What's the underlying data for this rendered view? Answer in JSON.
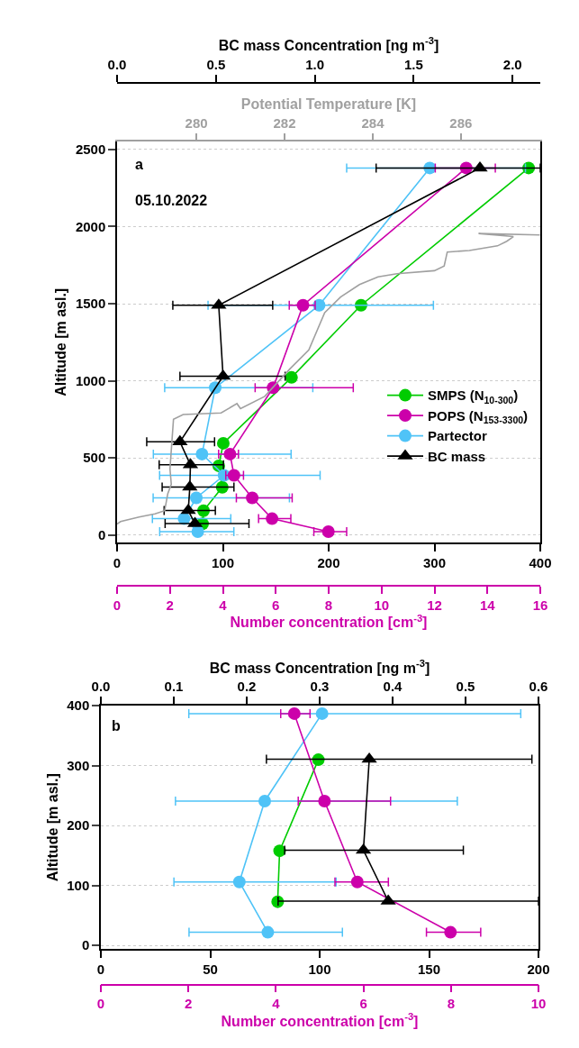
{
  "chart_data": [
    {
      "type": "line",
      "ylabel": "Altitude [m asl.]",
      "xlabel": "Number concentration [cm$^{-3}$]",
      "annotations": [
        "a",
        "05.10.2022"
      ],
      "xlim": [
        0,
        400
      ],
      "xticks": [
        0,
        100,
        200,
        300,
        400
      ],
      "x2lim": [
        0,
        16
      ],
      "x2ticks": [
        0,
        2,
        4,
        6,
        8,
        10,
        12,
        14,
        16
      ],
      "ylim": [
        -50,
        2550
      ],
      "yticks": [
        0,
        500,
        1000,
        1500,
        2000,
        2500
      ],
      "grid": "y",
      "legend": "right",
      "series": [
        {
          "name": "SMPS (N$_{10-300}$)",
          "color": "#00cc00",
          "marker": "circle",
          "x": [
            80.8,
            81.7,
            99.4,
            96.1,
            100.4,
            164.9,
            230.6,
            389
          ],
          "values": [
            73,
            158,
            310,
            449,
            595,
            1022,
            1490,
            2380
          ]
        },
        {
          "name": "POPS (N$_{153-3300}$)",
          "color": "#cc00aa",
          "marker": "circle",
          "axis": "x2",
          "x": [
            7.99,
            5.86,
            5.11,
            4.42,
            4.27,
            5.9,
            7.03,
            13.2
          ],
          "values": [
            22,
            106,
            241,
            387,
            525,
            955,
            1490,
            2380
          ],
          "xerrors": [
            [
              7.44,
              8.68
            ],
            [
              5.35,
              6.57
            ],
            [
              4.51,
              6.62
            ],
            [
              4.11,
              4.78
            ],
            [
              3.84,
              4.59
            ],
            [
              5.22,
              8.93
            ],
            [
              6.51,
              7.49
            ],
            [
              12.03,
              14.3
            ]
          ]
        },
        {
          "name": "Partector",
          "color": "#4fc3f7",
          "marker": "circle",
          "x": [
            76.3,
            63.3,
            74.9,
            101.1,
            80.3,
            92.8,
            191,
            295.6
          ],
          "values": [
            22,
            106,
            241,
            387,
            525,
            955,
            1490,
            2380
          ],
          "xerrors": [
            [
              40.3,
              110.4
            ],
            [
              33.4,
              107.5
            ],
            [
              34.1,
              162.9
            ],
            [
              40.2,
              191.9
            ],
            [
              34.3,
              164.5
            ],
            [
              45,
              185
            ],
            [
              86,
              299
            ],
            [
              217,
              386
            ]
          ]
        }
      ]
    },
    {
      "type": "line",
      "xlabel": "BC mass Concentration [ng m$^{-3}$]",
      "x2label": "Potential Temperature [K]",
      "xlim": [
        0,
        2.14
      ],
      "xticks": [
        {
          "value": 0,
          "label": "0.0"
        },
        0.5,
        {
          "value": 1,
          "label": "1.0"
        },
        1.5,
        {
          "value": 2,
          "label": "2.0"
        }
      ],
      "x2lim": [
        278.2,
        287.8
      ],
      "x2ticks": [
        280,
        282,
        284,
        286
      ],
      "ylim": [
        -50,
        2550
      ],
      "tick_labels": "x",
      "series": [
        {
          "name": "BC mass",
          "color": "#000000",
          "marker": "triangle",
          "x": [
            0.394,
            0.36,
            0.368,
            0.371,
            0.318,
            0.536,
            0.514,
            1.835
          ],
          "values": [
            74,
            159,
            311,
            455,
            604,
            1030,
            1490,
            2380
          ],
          "xerrors": [
            [
              0.243,
              0.667
            ],
            [
              0.238,
              0.497
            ],
            [
              0.228,
              0.591
            ],
            [
              0.213,
              0.538
            ],
            [
              0.15,
              0.493
            ],
            [
              0.318,
              0.85
            ],
            [
              0.282,
              0.787
            ],
            [
              1.31,
              2.14
            ]
          ]
        },
        {
          "color": "#a0a0a0",
          "marker": "none",
          "axis": "x2",
          "x": [
            278.2,
            278.28,
            278.7,
            279.06,
            279.28,
            279.35,
            279.43,
            279.4,
            279.43,
            279.48,
            279.7,
            280.56,
            280.92,
            281.0,
            281.55,
            282.13,
            282.55,
            282.91,
            283.27,
            283.7,
            284.12,
            284.55,
            285.4,
            285.62,
            285.69,
            286.19,
            286.83,
            287.04,
            287.19,
            286.4,
            287.79
          ],
          "values": [
            71,
            87,
            117,
            137,
            158,
            268,
            329,
            429,
            550,
            751,
            781,
            792,
            852,
            819,
            899,
            1080,
            1201,
            1442,
            1543,
            1624,
            1674,
            1694,
            1714,
            1744,
            1835,
            1845,
            1875,
            1905,
            1935,
            1955,
            1946
          ]
        }
      ]
    },
    {
      "type": "line",
      "ylabel": "Altitude [m asl.]",
      "xlabel": "Number concentration [cm$^{-3}$]",
      "annotations": [
        "b"
      ],
      "xlim": [
        0,
        200
      ],
      "xticks": [
        0,
        50,
        100,
        150,
        200
      ],
      "x2lim": [
        0,
        10
      ],
      "x2ticks": [
        0,
        2,
        4,
        6,
        8,
        10
      ],
      "ylim": [
        -6,
        400
      ],
      "yticks": [
        0,
        100,
        200,
        300,
        400
      ],
      "grid": "y",
      "series": [
        {
          "color": "#00cc00",
          "marker": "circle",
          "x": [
            80.8,
            81.7,
            99.4
          ],
          "values": [
            73,
            158,
            310
          ]
        },
        {
          "color": "#cc00aa",
          "marker": "circle",
          "axis": "x2",
          "x": [
            7.99,
            5.86,
            5.11,
            4.42
          ],
          "values": [
            22,
            106,
            241,
            387
          ],
          "xerrors": [
            [
              7.44,
              8.68
            ],
            [
              5.35,
              6.57
            ],
            [
              4.51,
              6.62
            ],
            [
              4.11,
              4.78
            ]
          ]
        },
        {
          "color": "#4fc3f7",
          "marker": "circle",
          "x": [
            76.3,
            63.3,
            74.9,
            101.1
          ],
          "values": [
            22,
            106,
            241,
            387
          ],
          "xerrors": [
            [
              40.3,
              110.4
            ],
            [
              33.4,
              107.5
            ],
            [
              34.1,
              162.9
            ],
            [
              40.2,
              191.9
            ]
          ]
        }
      ]
    },
    {
      "type": "line",
      "xlabel": "BC mass Concentration [ng m$^{-3}$]",
      "xlim": [
        0,
        0.6
      ],
      "xticks": [
        {
          "value": 0,
          "label": "0.0"
        },
        0.1,
        0.2,
        0.3,
        0.4,
        0.5,
        0.6
      ],
      "ylim": [
        -6,
        400
      ],
      "tick_labels": "x",
      "series": [
        {
          "color": "#000000",
          "marker": "triangle",
          "x": [
            0.394,
            0.36,
            0.368
          ],
          "values": [
            74,
            159,
            311
          ],
          "xerrors": [
            [
              0.243,
              0.6
            ],
            [
              0.252,
              0.497
            ],
            [
              0.227,
              0.591
            ]
          ]
        }
      ]
    }
  ]
}
